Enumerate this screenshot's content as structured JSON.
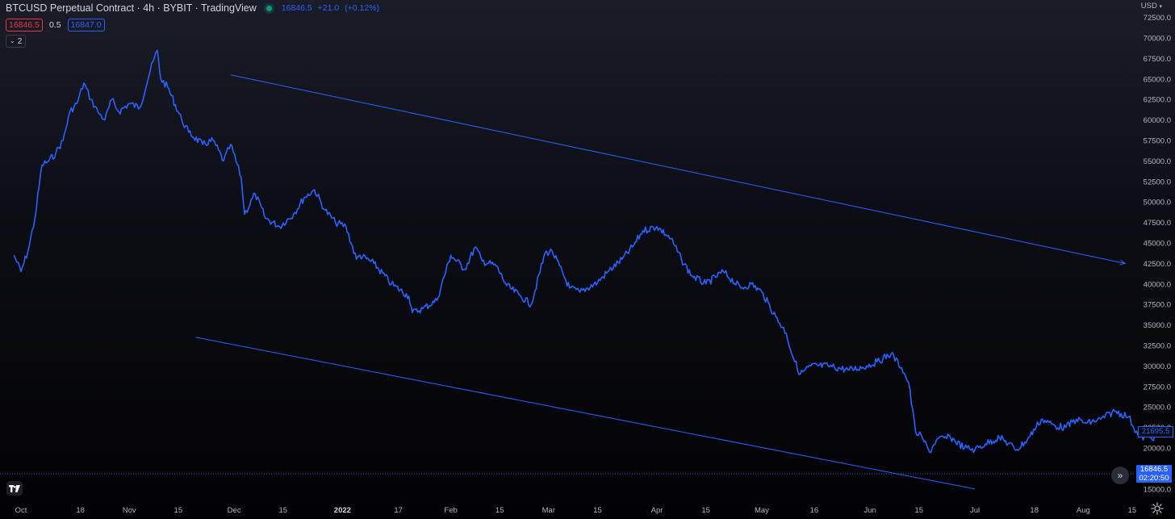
{
  "header": {
    "title": "BTCUSD Perpetual Contract · 4h · BYBIT · TradingView",
    "quote_last": "16846.5",
    "quote_change": "+21.0",
    "quote_change_pct": "(+0.12%)",
    "bid": "16846.5",
    "spread": "0.5",
    "ask": "16847.0",
    "indicators_collapsed_count": "2"
  },
  "currency_label": "USD",
  "last_price_tag": {
    "price": "16846.5",
    "countdown": "02:20:50"
  },
  "series_last_tag": "21695.5",
  "colors": {
    "line": "#2962ff",
    "bid": "#f23645",
    "ask": "#2962ff",
    "live_dot": "#089981"
  },
  "icons": [
    "tradingview-logo-icon",
    "double-chevron-right-icon",
    "gear-icon",
    "chevron-down-icon"
  ],
  "chart_data": {
    "type": "line",
    "title": "",
    "x_unit": "date",
    "ylim": [
      15000,
      72500
    ],
    "y_ticks": [
      "72500.0",
      "70000.0",
      "67500.0",
      "65000.0",
      "62500.0",
      "60000.0",
      "57500.0",
      "55000.0",
      "52500.0",
      "50000.0",
      "47500.0",
      "45000.0",
      "42500.0",
      "40000.0",
      "37500.0",
      "35000.0",
      "32500.0",
      "30000.0",
      "27500.0",
      "25000.0",
      "22500.0",
      "20000.0",
      "17500.0",
      "15000.0"
    ],
    "x_ticks": [
      {
        "label": "Oct",
        "date": "2021-10-01",
        "bold": false
      },
      {
        "label": "18",
        "date": "2021-10-18",
        "bold": false
      },
      {
        "label": "Nov",
        "date": "2021-11-01",
        "bold": false
      },
      {
        "label": "15",
        "date": "2021-11-15",
        "bold": false
      },
      {
        "label": "Dec",
        "date": "2021-12-01",
        "bold": false
      },
      {
        "label": "15",
        "date": "2021-12-15",
        "bold": false
      },
      {
        "label": "2022",
        "date": "2022-01-01",
        "bold": true
      },
      {
        "label": "17",
        "date": "2022-01-17",
        "bold": false
      },
      {
        "label": "Feb",
        "date": "2022-02-01",
        "bold": false
      },
      {
        "label": "15",
        "date": "2022-02-15",
        "bold": false
      },
      {
        "label": "Mar",
        "date": "2022-03-01",
        "bold": false
      },
      {
        "label": "15",
        "date": "2022-03-15",
        "bold": false
      },
      {
        "label": "Apr",
        "date": "2022-04-01",
        "bold": false
      },
      {
        "label": "15",
        "date": "2022-04-15",
        "bold": false
      },
      {
        "label": "May",
        "date": "2022-05-01",
        "bold": false
      },
      {
        "label": "16",
        "date": "2022-05-16",
        "bold": false
      },
      {
        "label": "Jun",
        "date": "2022-06-01",
        "bold": false
      },
      {
        "label": "15",
        "date": "2022-06-15",
        "bold": false
      },
      {
        "label": "Jul",
        "date": "2022-07-01",
        "bold": false
      },
      {
        "label": "18",
        "date": "2022-07-18",
        "bold": false
      },
      {
        "label": "Aug",
        "date": "2022-08-01",
        "bold": false
      },
      {
        "label": "15",
        "date": "2022-08-15",
        "bold": false
      }
    ],
    "series": [
      {
        "x": [
          "2021-09-29",
          "2021-10-01",
          "2021-10-03",
          "2021-10-05",
          "2021-10-07",
          "2021-10-09",
          "2021-10-11",
          "2021-10-13",
          "2021-10-15",
          "2021-10-17",
          "2021-10-19",
          "2021-10-21",
          "2021-10-23",
          "2021-10-25",
          "2021-10-27",
          "2021-10-29",
          "2021-11-01",
          "2021-11-04",
          "2021-11-07",
          "2021-11-09",
          "2021-11-10",
          "2021-11-12",
          "2021-11-16",
          "2021-11-18",
          "2021-11-22",
          "2021-11-25",
          "2021-11-28",
          "2021-11-30",
          "2021-12-03",
          "2021-12-04",
          "2021-12-07",
          "2021-12-10",
          "2021-12-14",
          "2021-12-18",
          "2021-12-21",
          "2021-12-24",
          "2021-12-27",
          "2021-12-30",
          "2022-01-02",
          "2022-01-05",
          "2022-01-06",
          "2022-01-10",
          "2022-01-15",
          "2022-01-20",
          "2022-01-21",
          "2022-01-24",
          "2022-01-28",
          "2022-02-01",
          "2022-02-05",
          "2022-02-08",
          "2022-02-10",
          "2022-02-14",
          "2022-02-17",
          "2022-02-21",
          "2022-02-24",
          "2022-02-28",
          "2022-03-02",
          "2022-03-07",
          "2022-03-10",
          "2022-03-15",
          "2022-03-18",
          "2022-03-22",
          "2022-03-25",
          "2022-03-28",
          "2022-04-01",
          "2022-04-05",
          "2022-04-08",
          "2022-04-11",
          "2022-04-15",
          "2022-04-20",
          "2022-04-25",
          "2022-04-28",
          "2022-05-01",
          "2022-05-05",
          "2022-05-08",
          "2022-05-10",
          "2022-05-12",
          "2022-05-15",
          "2022-05-20",
          "2022-05-26",
          "2022-05-31",
          "2022-06-03",
          "2022-06-07",
          "2022-06-10",
          "2022-06-12",
          "2022-06-14",
          "2022-06-16",
          "2022-06-18",
          "2022-06-20",
          "2022-06-24",
          "2022-06-28",
          "2022-07-01",
          "2022-07-04",
          "2022-07-08",
          "2022-07-13",
          "2022-07-16",
          "2022-07-20",
          "2022-07-24",
          "2022-07-27",
          "2022-07-30",
          "2022-08-02",
          "2022-08-06",
          "2022-08-10",
          "2022-08-14",
          "2022-08-17",
          "2022-08-20",
          "2022-08-23"
        ],
        "y": [
          43500,
          41500,
          44000,
          48000,
          54500,
          55000,
          56000,
          57500,
          61000,
          62000,
          64500,
          62500,
          61000,
          60000,
          62500,
          61000,
          62000,
          61500,
          66000,
          68500,
          65000,
          64000,
          60000,
          58500,
          57000,
          57500,
          55000,
          57000,
          53000,
          48500,
          51000,
          48000,
          47000,
          48500,
          50500,
          51500,
          49000,
          47500,
          47000,
          43000,
          43500,
          42500,
          40000,
          38500,
          36500,
          37000,
          38000,
          43500,
          41800,
          44500,
          42800,
          42200,
          39800,
          38500,
          37500,
          43800,
          44000,
          39500,
          39000,
          40200,
          41500,
          43000,
          44500,
          46500,
          47000,
          45500,
          43000,
          41000,
          40000,
          41500,
          39500,
          40000,
          39000,
          36000,
          34000,
          31000,
          29000,
          30000,
          30000,
          29500,
          30000,
          30500,
          31500,
          29800,
          28000,
          22000,
          21200,
          19500,
          21000,
          21300,
          20000,
          19800,
          20500,
          21300,
          19800,
          21000,
          23500,
          22700,
          22500,
          23500,
          23000,
          23500,
          24500,
          23800,
          21300,
          21300,
          21400
        ]
      }
    ],
    "trendlines": [
      {
        "from": {
          "x": "2021-11-30",
          "y": 65500
        },
        "to": {
          "x": "2022-08-13",
          "y": 42500
        },
        "arrow_end": true
      },
      {
        "from": {
          "x": "2021-11-20",
          "y": 33500
        },
        "to": {
          "x": "2022-07-01",
          "y": 15000
        },
        "arrow_end": false
      }
    ],
    "horizontal_lines": [
      {
        "y": 16846.5,
        "style": "dotted"
      }
    ],
    "grid": false,
    "legend": "none"
  }
}
